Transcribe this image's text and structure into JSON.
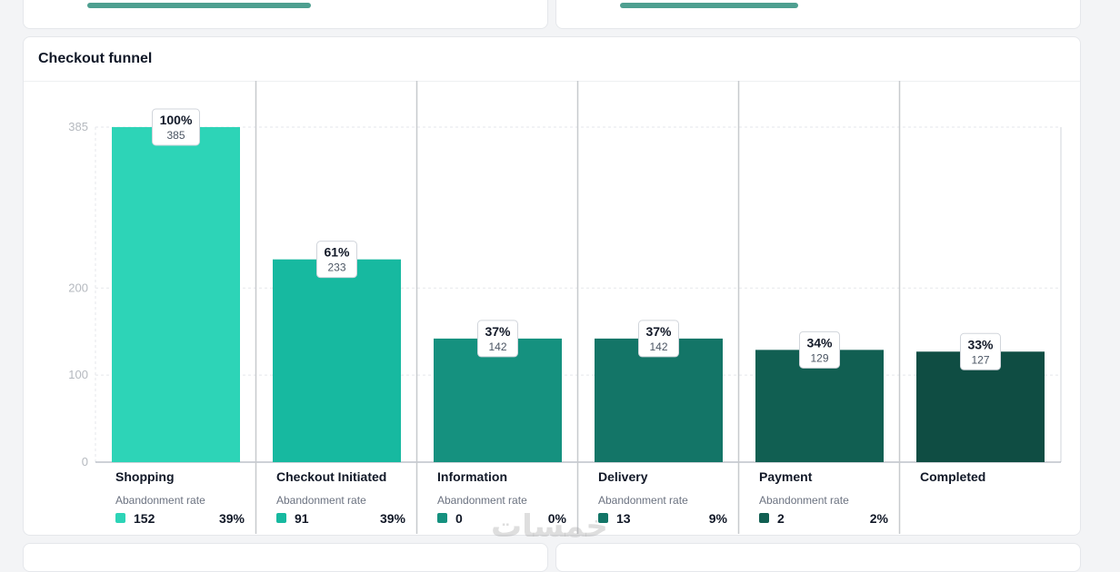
{
  "card": {
    "title": "Checkout funnel"
  },
  "chart_data": {
    "type": "bar",
    "title": "Checkout funnel",
    "categories": [
      "Shopping",
      "Checkout Initiated",
      "Information",
      "Delivery",
      "Payment",
      "Completed"
    ],
    "values": [
      385,
      233,
      142,
      142,
      129,
      127
    ],
    "percent_labels": [
      "100%",
      "61%",
      "37%",
      "37%",
      "34%",
      "33%"
    ],
    "yticks": [
      385,
      200,
      100,
      0
    ],
    "ylim": [
      0,
      385
    ],
    "abandonment_label": "Abandonment rate",
    "abandonment": [
      {
        "count": "152",
        "rate": "39%"
      },
      {
        "count": "91",
        "rate": "39%"
      },
      {
        "count": "0",
        "rate": "0%"
      },
      {
        "count": "13",
        "rate": "9%"
      },
      {
        "count": "2",
        "rate": "2%"
      }
    ],
    "colors": [
      "#2dd4b7",
      "#17b9a0",
      "#15917f",
      "#137567",
      "#115f52",
      "#0f4d43"
    ]
  },
  "watermark": "خمسات"
}
